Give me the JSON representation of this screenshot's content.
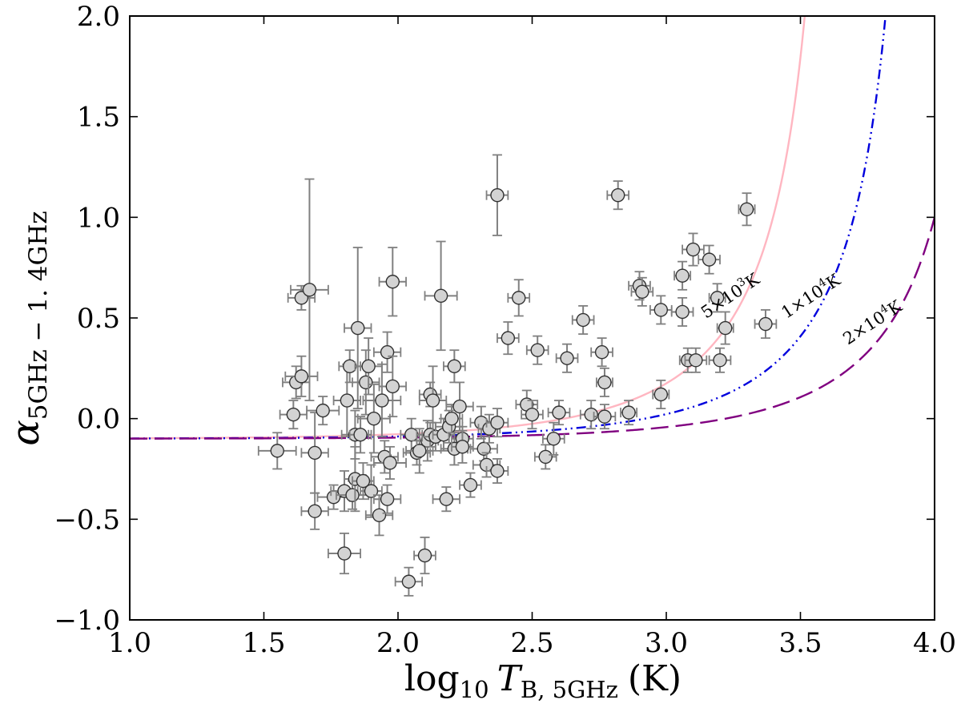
{
  "chart_data": {
    "type": "scatter",
    "title": "",
    "xlabel": {
      "prefix": "log",
      "sub1": "10",
      "var": "T",
      "sub2": "B, 5GHz",
      "suffix": "(K)"
    },
    "ylabel": {
      "var": "α",
      "sub": "5GHz − 1. 4GHz"
    },
    "xlim": [
      1.0,
      4.0
    ],
    "ylim": [
      -1.0,
      2.0
    ],
    "xticks": [
      1.0,
      1.5,
      2.0,
      2.5,
      3.0,
      3.5,
      4.0
    ],
    "yticks": [
      -1.0,
      -0.5,
      0.0,
      0.5,
      1.0,
      1.5,
      2.0
    ],
    "xtick_labels": [
      "1.0",
      "1.5",
      "2.0",
      "2.5",
      "3.0",
      "3.5",
      "4.0"
    ],
    "ytick_labels": [
      "−1.0",
      "−0.5",
      "0.0",
      "0.5",
      "1.0",
      "1.5",
      "2.0"
    ],
    "grid": false,
    "curves": [
      {
        "name": "5×10³K",
        "label": {
          "coef": "5",
          "times": "×",
          "base": "10",
          "exp": "3",
          "unit": "K"
        },
        "temperature": 5000,
        "color": "#ffb6c1",
        "style": "solid",
        "label_at": 3.25,
        "label_angle": -34
      },
      {
        "name": "1×10⁴K",
        "label": {
          "coef": "1",
          "times": "×",
          "base": "10",
          "exp": "4",
          "unit": "K"
        },
        "temperature": 10000,
        "color": "#0000dd",
        "style": "dashdot",
        "label_at": 3.55,
        "label_angle": -33
      },
      {
        "name": "2×10⁴K",
        "label": {
          "coef": "2",
          "times": "×",
          "base": "10",
          "exp": "4",
          "unit": "K"
        },
        "temperature": 20000,
        "color": "#800080",
        "style": "dashed",
        "label_at": 3.78,
        "label_angle": -33
      }
    ],
    "marker_fill": "#d3d3d3",
    "errorbar_color": "#808080",
    "points": [
      {
        "x": 1.55,
        "y": -0.16,
        "xerr": 0.07,
        "yerr": 0.09
      },
      {
        "x": 1.61,
        "y": 0.02,
        "xerr": 0.05,
        "yerr": 0.07
      },
      {
        "x": 1.62,
        "y": 0.18,
        "xerr": 0.05,
        "yerr": 0.08
      },
      {
        "x": 1.64,
        "y": 0.21,
        "xerr": 0.06,
        "yerr": 0.1
      },
      {
        "x": 1.64,
        "y": 0.6,
        "xerr": 0.05,
        "yerr": 0.06
      },
      {
        "x": 1.67,
        "y": 0.64,
        "xerr": 0.07,
        "yerr": 0.55
      },
      {
        "x": 1.69,
        "y": -0.17,
        "xerr": 0.05,
        "yerr": 0.2
      },
      {
        "x": 1.69,
        "y": -0.46,
        "xerr": 0.05,
        "yerr": 0.09
      },
      {
        "x": 1.72,
        "y": 0.04,
        "xerr": 0.06,
        "yerr": 0.07
      },
      {
        "x": 1.76,
        "y": -0.39,
        "xerr": 0.06,
        "yerr": 0.06
      },
      {
        "x": 1.8,
        "y": -0.36,
        "xerr": 0.05,
        "yerr": 0.1
      },
      {
        "x": 1.8,
        "y": -0.67,
        "xerr": 0.06,
        "yerr": 0.1
      },
      {
        "x": 1.81,
        "y": 0.09,
        "xerr": 0.05,
        "yerr": 0.18
      },
      {
        "x": 1.82,
        "y": 0.26,
        "xerr": 0.04,
        "yerr": 0.08
      },
      {
        "x": 1.83,
        "y": -0.38,
        "xerr": 0.06,
        "yerr": 0.07
      },
      {
        "x": 1.84,
        "y": -0.08,
        "xerr": 0.05,
        "yerr": 0.12
      },
      {
        "x": 1.84,
        "y": -0.3,
        "xerr": 0.04,
        "yerr": 0.16
      },
      {
        "x": 1.85,
        "y": 0.45,
        "xerr": 0.05,
        "yerr": 0.4
      },
      {
        "x": 1.86,
        "y": -0.08,
        "xerr": 0.04,
        "yerr": 0.09
      },
      {
        "x": 1.87,
        "y": -0.31,
        "xerr": 0.04,
        "yerr": 0.09
      },
      {
        "x": 1.88,
        "y": 0.18,
        "xerr": 0.05,
        "yerr": 0.16
      },
      {
        "x": 1.89,
        "y": 0.26,
        "xerr": 0.05,
        "yerr": 0.14
      },
      {
        "x": 1.9,
        "y": -0.36,
        "xerr": 0.04,
        "yerr": 0.13
      },
      {
        "x": 1.91,
        "y": 0.0,
        "xerr": 0.06,
        "yerr": 0.17
      },
      {
        "x": 1.93,
        "y": -0.48,
        "xerr": 0.05,
        "yerr": 0.1
      },
      {
        "x": 1.94,
        "y": 0.09,
        "xerr": 0.07,
        "yerr": 0.18
      },
      {
        "x": 1.95,
        "y": -0.19,
        "xerr": 0.05,
        "yerr": 0.08
      },
      {
        "x": 1.96,
        "y": 0.33,
        "xerr": 0.05,
        "yerr": 0.1
      },
      {
        "x": 1.96,
        "y": -0.4,
        "xerr": 0.05,
        "yerr": 0.07
      },
      {
        "x": 1.97,
        "y": -0.22,
        "xerr": 0.06,
        "yerr": 0.08
      },
      {
        "x": 1.98,
        "y": 0.16,
        "xerr": 0.05,
        "yerr": 0.15
      },
      {
        "x": 1.98,
        "y": 0.68,
        "xerr": 0.05,
        "yerr": 0.17
      },
      {
        "x": 2.04,
        "y": -0.81,
        "xerr": 0.05,
        "yerr": 0.07
      },
      {
        "x": 2.05,
        "y": -0.08,
        "xerr": 0.04,
        "yerr": 0.08
      },
      {
        "x": 2.07,
        "y": -0.17,
        "xerr": 0.05,
        "yerr": 0.06
      },
      {
        "x": 2.08,
        "y": -0.16,
        "xerr": 0.05,
        "yerr": 0.11
      },
      {
        "x": 2.1,
        "y": -0.68,
        "xerr": 0.04,
        "yerr": 0.09
      },
      {
        "x": 2.11,
        "y": -0.11,
        "xerr": 0.04,
        "yerr": 0.1
      },
      {
        "x": 2.12,
        "y": 0.12,
        "xerr": 0.04,
        "yerr": 0.06
      },
      {
        "x": 2.12,
        "y": -0.08,
        "xerr": 0.05,
        "yerr": 0.06
      },
      {
        "x": 2.13,
        "y": 0.09,
        "xerr": 0.05,
        "yerr": 0.17
      },
      {
        "x": 2.14,
        "y": -0.09,
        "xerr": 0.05,
        "yerr": 0.07
      },
      {
        "x": 2.16,
        "y": 0.61,
        "xerr": 0.06,
        "yerr": 0.27
      },
      {
        "x": 2.17,
        "y": -0.08,
        "xerr": 0.04,
        "yerr": 0.08
      },
      {
        "x": 2.18,
        "y": -0.4,
        "xerr": 0.05,
        "yerr": 0.06
      },
      {
        "x": 2.19,
        "y": -0.04,
        "xerr": 0.05,
        "yerr": 0.08
      },
      {
        "x": 2.2,
        "y": 0.0,
        "xerr": 0.04,
        "yerr": 0.07
      },
      {
        "x": 2.21,
        "y": 0.26,
        "xerr": 0.04,
        "yerr": 0.08
      },
      {
        "x": 2.21,
        "y": -0.15,
        "xerr": 0.05,
        "yerr": 0.08
      },
      {
        "x": 2.23,
        "y": 0.06,
        "xerr": 0.05,
        "yerr": 0.12
      },
      {
        "x": 2.24,
        "y": -0.1,
        "xerr": 0.04,
        "yerr": 0.06
      },
      {
        "x": 2.24,
        "y": -0.14,
        "xerr": 0.04,
        "yerr": 0.08
      },
      {
        "x": 2.27,
        "y": -0.33,
        "xerr": 0.04,
        "yerr": 0.06
      },
      {
        "x": 2.31,
        "y": -0.02,
        "xerr": 0.04,
        "yerr": 0.08
      },
      {
        "x": 2.32,
        "y": -0.15,
        "xerr": 0.05,
        "yerr": 0.06
      },
      {
        "x": 2.33,
        "y": -0.23,
        "xerr": 0.05,
        "yerr": 0.06
      },
      {
        "x": 2.34,
        "y": -0.05,
        "xerr": 0.04,
        "yerr": 0.07
      },
      {
        "x": 2.37,
        "y": -0.26,
        "xerr": 0.04,
        "yerr": 0.06
      },
      {
        "x": 2.37,
        "y": -0.02,
        "xerr": 0.04,
        "yerr": 0.07
      },
      {
        "x": 2.37,
        "y": 1.11,
        "xerr": 0.04,
        "yerr": 0.2
      },
      {
        "x": 2.41,
        "y": 0.4,
        "xerr": 0.04,
        "yerr": 0.08
      },
      {
        "x": 2.45,
        "y": 0.6,
        "xerr": 0.04,
        "yerr": 0.09
      },
      {
        "x": 2.48,
        "y": 0.07,
        "xerr": 0.04,
        "yerr": 0.07
      },
      {
        "x": 2.5,
        "y": 0.02,
        "xerr": 0.04,
        "yerr": 0.07
      },
      {
        "x": 2.52,
        "y": 0.34,
        "xerr": 0.04,
        "yerr": 0.07
      },
      {
        "x": 2.55,
        "y": -0.19,
        "xerr": 0.04,
        "yerr": 0.06
      },
      {
        "x": 2.58,
        "y": -0.1,
        "xerr": 0.04,
        "yerr": 0.08
      },
      {
        "x": 2.6,
        "y": 0.03,
        "xerr": 0.04,
        "yerr": 0.06
      },
      {
        "x": 2.63,
        "y": 0.3,
        "xerr": 0.04,
        "yerr": 0.07
      },
      {
        "x": 2.69,
        "y": 0.49,
        "xerr": 0.04,
        "yerr": 0.07
      },
      {
        "x": 2.72,
        "y": 0.02,
        "xerr": 0.04,
        "yerr": 0.07
      },
      {
        "x": 2.76,
        "y": 0.33,
        "xerr": 0.04,
        "yerr": 0.07
      },
      {
        "x": 2.77,
        "y": 0.18,
        "xerr": 0.03,
        "yerr": 0.07
      },
      {
        "x": 2.77,
        "y": 0.01,
        "xerr": 0.04,
        "yerr": 0.06
      },
      {
        "x": 2.82,
        "y": 1.11,
        "xerr": 0.04,
        "yerr": 0.07
      },
      {
        "x": 2.86,
        "y": 0.03,
        "xerr": 0.03,
        "yerr": 0.06
      },
      {
        "x": 2.9,
        "y": 0.66,
        "xerr": 0.04,
        "yerr": 0.07
      },
      {
        "x": 2.91,
        "y": 0.63,
        "xerr": 0.04,
        "yerr": 0.07
      },
      {
        "x": 2.98,
        "y": 0.54,
        "xerr": 0.04,
        "yerr": 0.07
      },
      {
        "x": 2.98,
        "y": 0.12,
        "xerr": 0.03,
        "yerr": 0.07
      },
      {
        "x": 3.06,
        "y": 0.71,
        "xerr": 0.03,
        "yerr": 0.07
      },
      {
        "x": 3.06,
        "y": 0.53,
        "xerr": 0.04,
        "yerr": 0.07
      },
      {
        "x": 3.08,
        "y": 0.29,
        "xerr": 0.03,
        "yerr": 0.06
      },
      {
        "x": 3.1,
        "y": 0.84,
        "xerr": 0.04,
        "yerr": 0.08
      },
      {
        "x": 3.11,
        "y": 0.29,
        "xerr": 0.04,
        "yerr": 0.06
      },
      {
        "x": 3.16,
        "y": 0.79,
        "xerr": 0.04,
        "yerr": 0.07
      },
      {
        "x": 3.19,
        "y": 0.6,
        "xerr": 0.03,
        "yerr": 0.07
      },
      {
        "x": 3.2,
        "y": 0.29,
        "xerr": 0.04,
        "yerr": 0.06
      },
      {
        "x": 3.22,
        "y": 0.45,
        "xerr": 0.03,
        "yerr": 0.08
      },
      {
        "x": 3.3,
        "y": 1.04,
        "xerr": 0.03,
        "yerr": 0.08
      },
      {
        "x": 3.37,
        "y": 0.47,
        "xerr": 0.04,
        "yerr": 0.07
      }
    ]
  }
}
